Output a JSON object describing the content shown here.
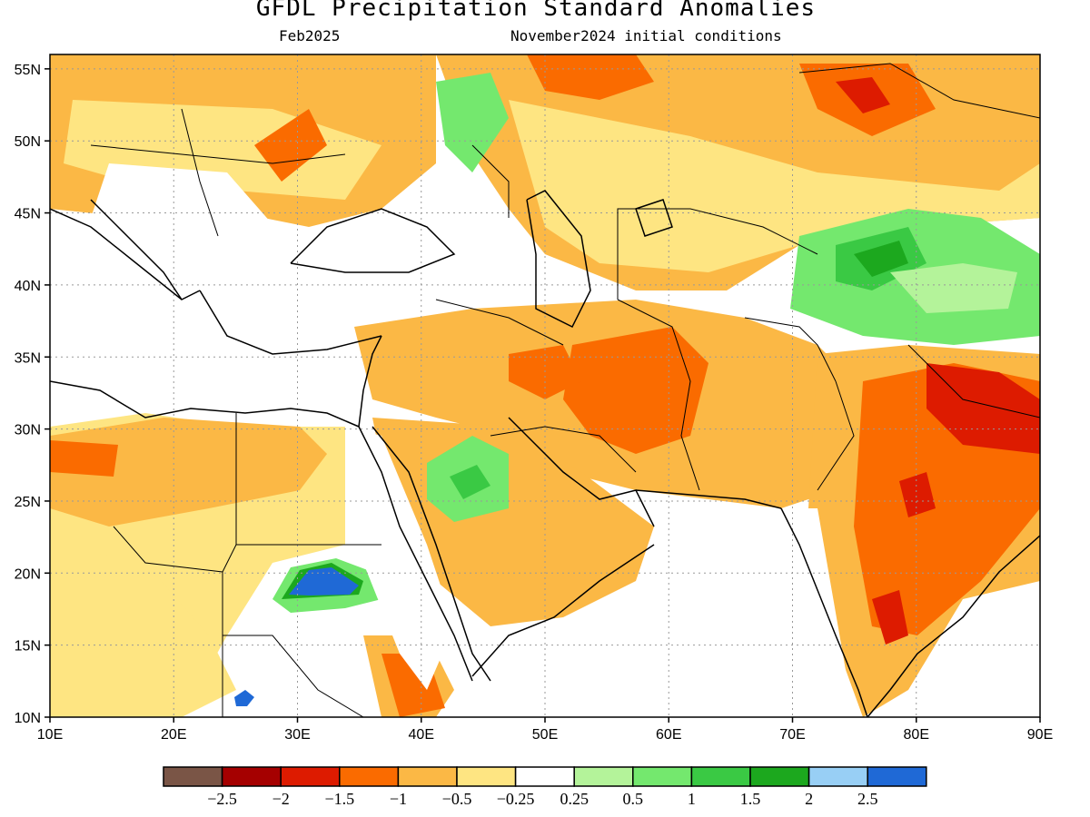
{
  "figure": {
    "title": "GFDL Precipitation Standard Anomalies",
    "valid_month": "Feb2025",
    "initial_conditions": "November2024 initial conditions"
  },
  "map": {
    "lon_range": [
      10,
      90
    ],
    "lat_range": [
      10,
      56
    ],
    "lon_ticks": [
      "10E",
      "20E",
      "30E",
      "40E",
      "50E",
      "60E",
      "70E",
      "80E",
      "90E"
    ],
    "lat_ticks": [
      "10N",
      "15N",
      "20N",
      "25N",
      "30N",
      "35N",
      "40N",
      "45N",
      "50N",
      "55N"
    ],
    "grid": "dotted"
  },
  "colorbar": {
    "colors": [
      "#7a5546",
      "#a50000",
      "#dd1b00",
      "#fa6b00",
      "#fbb845",
      "#fee582",
      "#ffffff",
      "#b4f39a",
      "#74e86e",
      "#3ac944",
      "#1ca81e",
      "#98cff5",
      "#1f69d6"
    ],
    "labels": [
      "−2.5",
      "−2",
      "−1.5",
      "−1",
      "−0.5",
      "−0.25",
      "0.25",
      "0.5",
      "1",
      "1.5",
      "2",
      "2.5"
    ]
  }
}
